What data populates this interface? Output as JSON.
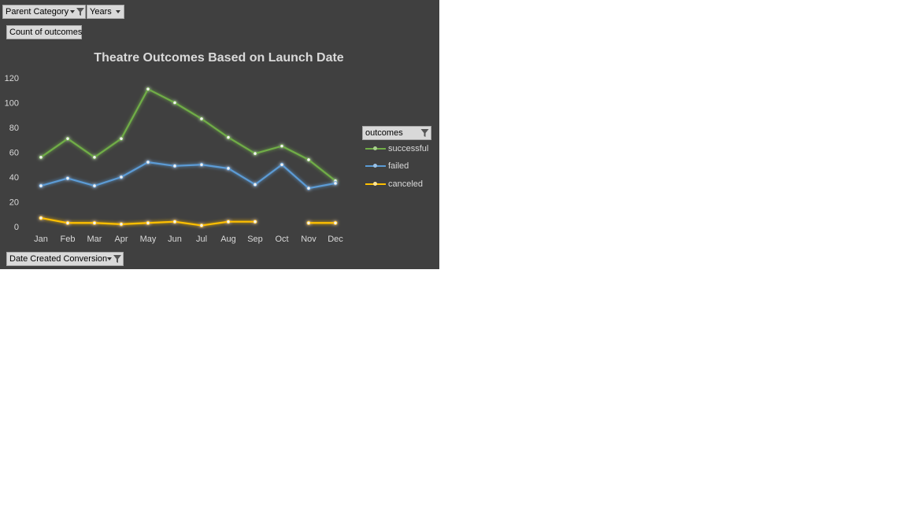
{
  "filters": {
    "parent_category": "Parent Category",
    "years": "Years",
    "values_field": "Count of outcomes",
    "legend_field": "outcomes",
    "axis_field": "Date Created Conversion"
  },
  "colors": {
    "panel_bg": "#404040",
    "successful": "#70ad47",
    "failed": "#5b9bd5",
    "canceled": "#ffc000",
    "text": "#d9d9d9"
  },
  "chart_data": {
    "type": "line",
    "title": "Theatre Outcomes Based on Launch Date",
    "xlabel": "",
    "ylabel": "",
    "categories": [
      "Jan",
      "Feb",
      "Mar",
      "Apr",
      "May",
      "Jun",
      "Jul",
      "Aug",
      "Sep",
      "Oct",
      "Nov",
      "Dec"
    ],
    "yticks": [
      "0",
      "20",
      "40",
      "60",
      "80",
      "100",
      "120"
    ],
    "ylim": [
      0,
      120
    ],
    "grid": false,
    "legend_position": "right",
    "series": [
      {
        "name": "successful",
        "color": "#70ad47",
        "values": [
          56,
          71,
          56,
          71,
          111,
          100,
          87,
          72,
          59,
          65,
          54,
          37
        ]
      },
      {
        "name": "failed",
        "color": "#5b9bd5",
        "values": [
          33,
          39,
          33,
          40,
          52,
          49,
          50,
          47,
          34,
          50,
          31,
          35
        ]
      },
      {
        "name": "canceled",
        "color": "#ffc000",
        "values": [
          7,
          3,
          3,
          2,
          3,
          4,
          1,
          4,
          4,
          null,
          3,
          3
        ]
      }
    ]
  }
}
